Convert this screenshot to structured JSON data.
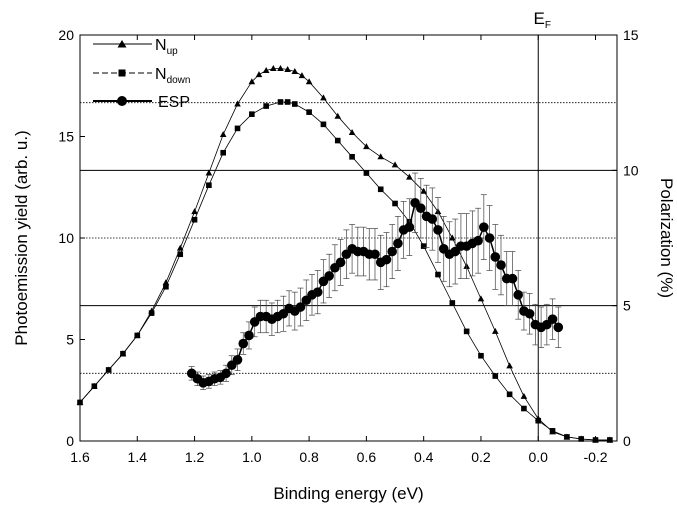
{
  "chart_data": {
    "type": "line",
    "xlabel": "Binding energy (eV)",
    "ylabel": "Photoemission yield (arb. u.)",
    "y2label": "Polarization (%)",
    "xlim": [
      1.6,
      -0.275
    ],
    "ylim": [
      0,
      20
    ],
    "y2lim": [
      0,
      15
    ],
    "x_ticks": [
      "1.6",
      "1.4",
      "1.2",
      "1.0",
      "0.8",
      "0.6",
      "0.4",
      "0.2",
      "0.0",
      "-0.2"
    ],
    "y_ticks": [
      "0",
      "5",
      "10",
      "15",
      "20"
    ],
    "y2_ticks": [
      "0",
      "5",
      "10",
      "15"
    ],
    "annotation": {
      "label": "E",
      "sub": "F",
      "x": 0.0
    },
    "horizontal_lines": [
      {
        "y2": 2.5,
        "style": "dotted"
      },
      {
        "y2": 5,
        "style": "solid"
      },
      {
        "y2": 7.5,
        "style": "dotted"
      },
      {
        "y2": 10,
        "style": "solid"
      },
      {
        "y2": 12.5,
        "style": "dotted"
      }
    ],
    "legend": {
      "position": "top-left",
      "items": [
        {
          "label": "N",
          "sub": "up",
          "marker": "triangle"
        },
        {
          "label": "N",
          "sub": "down",
          "marker": "square"
        },
        {
          "label": "ESP",
          "marker": "circle"
        }
      ]
    },
    "series": [
      {
        "marker": "triangle",
        "axis": "left",
        "x": [
          1.6,
          1.55,
          1.5,
          1.45,
          1.4,
          1.35,
          1.3,
          1.25,
          1.2,
          1.15,
          1.1,
          1.05,
          1.0,
          0.975,
          0.95,
          0.925,
          0.9,
          0.875,
          0.85,
          0.825,
          0.8,
          0.75,
          0.7,
          0.65,
          0.6,
          0.55,
          0.5,
          0.45,
          0.4,
          0.35,
          0.3,
          0.25,
          0.2,
          0.15,
          0.1,
          0.05,
          0.0,
          -0.05,
          -0.1,
          -0.15,
          -0.2,
          -0.25
        ],
        "values": [
          1.9,
          2.7,
          3.5,
          4.3,
          5.2,
          6.4,
          7.8,
          9.5,
          11.3,
          13.2,
          15.1,
          16.6,
          17.7,
          18.05,
          18.25,
          18.35,
          18.35,
          18.3,
          18.2,
          18.0,
          17.7,
          16.9,
          16.0,
          15.2,
          14.5,
          14.0,
          13.6,
          13.0,
          12.3,
          11.3,
          10.0,
          8.6,
          7.0,
          5.4,
          3.7,
          2.2,
          1.1,
          0.45,
          0.2,
          0.1,
          0.05,
          0.05
        ]
      },
      {
        "marker": "square",
        "axis": "left",
        "x": [
          1.6,
          1.55,
          1.5,
          1.45,
          1.4,
          1.35,
          1.3,
          1.25,
          1.2,
          1.15,
          1.1,
          1.05,
          1.0,
          0.95,
          0.9,
          0.875,
          0.85,
          0.8,
          0.75,
          0.7,
          0.65,
          0.6,
          0.55,
          0.5,
          0.45,
          0.4,
          0.35,
          0.3,
          0.25,
          0.2,
          0.15,
          0.1,
          0.05,
          0.0,
          -0.05,
          -0.1,
          -0.15,
          -0.2,
          -0.25
        ],
        "values": [
          1.9,
          2.7,
          3.5,
          4.3,
          5.2,
          6.3,
          7.6,
          9.2,
          10.9,
          12.6,
          14.2,
          15.4,
          16.1,
          16.5,
          16.7,
          16.7,
          16.6,
          16.2,
          15.6,
          14.8,
          14.0,
          13.2,
          12.4,
          11.7,
          10.8,
          9.6,
          8.2,
          6.8,
          5.4,
          4.2,
          3.2,
          2.3,
          1.6,
          1.0,
          0.5,
          0.2,
          0.1,
          0.05,
          0.05
        ]
      },
      {
        "marker": "circle",
        "axis": "right",
        "x": [
          1.21,
          1.19,
          1.17,
          1.15,
          1.13,
          1.11,
          1.09,
          1.07,
          1.05,
          1.03,
          1.01,
          0.99,
          0.97,
          0.95,
          0.93,
          0.91,
          0.89,
          0.87,
          0.85,
          0.83,
          0.81,
          0.79,
          0.77,
          0.75,
          0.73,
          0.71,
          0.69,
          0.67,
          0.65,
          0.63,
          0.61,
          0.59,
          0.57,
          0.55,
          0.53,
          0.51,
          0.49,
          0.47,
          0.45,
          0.43,
          0.41,
          0.39,
          0.37,
          0.35,
          0.33,
          0.31,
          0.29,
          0.27,
          0.25,
          0.23,
          0.21,
          0.19,
          0.17,
          0.15,
          0.13,
          0.11,
          0.09,
          0.07,
          0.05,
          0.03,
          0.01,
          -0.01,
          -0.03,
          -0.05,
          -0.07
        ],
        "values": [
          2.5,
          2.3,
          2.15,
          2.2,
          2.3,
          2.35,
          2.5,
          2.8,
          3.0,
          3.6,
          3.9,
          4.4,
          4.6,
          4.6,
          4.5,
          4.6,
          4.7,
          4.9,
          4.8,
          4.95,
          5.2,
          5.4,
          5.5,
          5.9,
          6.1,
          6.4,
          6.6,
          6.9,
          7.1,
          7.0,
          7.0,
          6.9,
          6.9,
          6.6,
          6.7,
          7.0,
          7.3,
          7.8,
          7.9,
          8.8,
          8.6,
          8.3,
          8.2,
          7.8,
          7.1,
          6.9,
          7.0,
          7.2,
          7.2,
          7.3,
          7.4,
          7.9,
          7.5,
          6.8,
          6.5,
          6.0,
          6.0,
          5.4,
          4.8,
          4.7,
          4.3,
          4.2,
          4.3,
          4.5,
          4.2
        ],
        "error": [
          0.25,
          0.25,
          0.25,
          0.25,
          0.25,
          0.25,
          0.3,
          0.35,
          0.4,
          0.4,
          0.5,
          0.55,
          0.6,
          0.6,
          0.6,
          0.6,
          0.65,
          0.65,
          0.7,
          0.7,
          0.75,
          0.75,
          0.8,
          0.8,
          0.8,
          0.85,
          0.85,
          0.9,
          0.9,
          0.9,
          0.9,
          0.95,
          0.95,
          1.0,
          1.0,
          1.0,
          1.0,
          1.05,
          1.05,
          1.1,
          1.1,
          1.15,
          1.15,
          1.2,
          1.2,
          1.2,
          1.2,
          1.2,
          1.2,
          1.2,
          1.2,
          1.2,
          1.2,
          1.2,
          1.1,
          1.0,
          1.0,
          0.9,
          0.7,
          0.75,
          0.75,
          0.75,
          0.75,
          0.75,
          0.75
        ]
      }
    ]
  }
}
